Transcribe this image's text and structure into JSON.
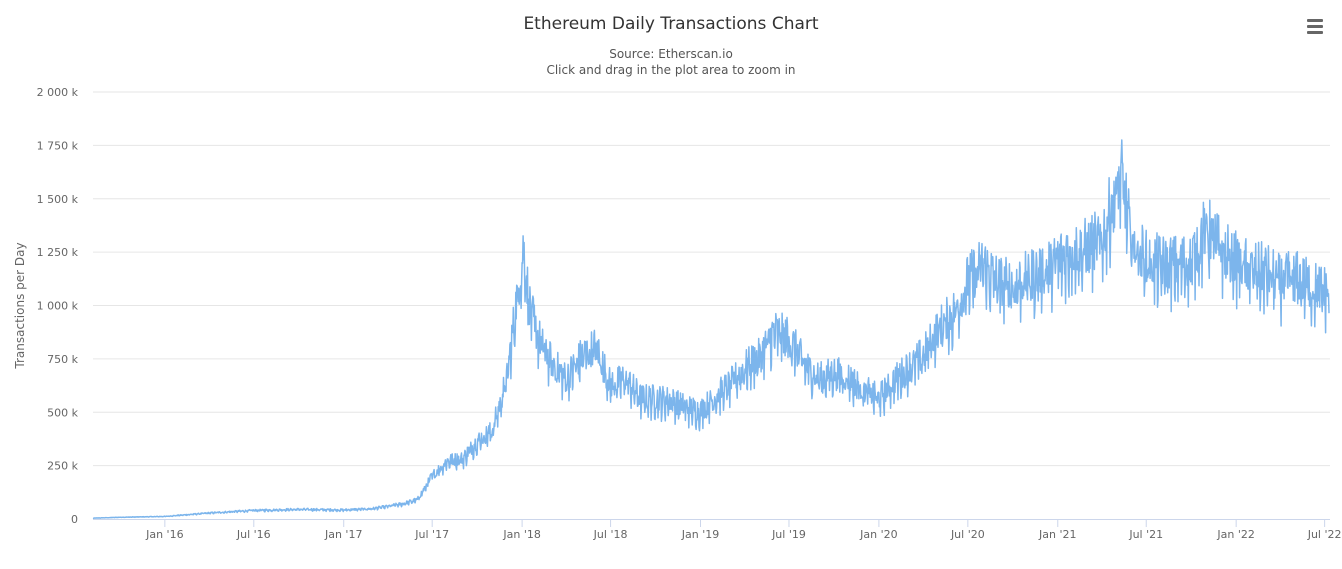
{
  "chart_data": {
    "type": "line",
    "title": "Ethereum Daily Transactions Chart",
    "subtitle": "Source: Etherscan.io",
    "instruction": "Click and drag in the plot area to zoom in",
    "ylabel": "Transactions per Day",
    "xlabel": "",
    "ylim": [
      0,
      2000000
    ],
    "yticks": [
      0,
      250000,
      500000,
      750000,
      1000000,
      1250000,
      1500000,
      1750000,
      2000000
    ],
    "ytick_labels": [
      "0",
      "250 k",
      "500 k",
      "750 k",
      "1 000 k",
      "1 250 k",
      "1 500 k",
      "1 750 k",
      "2 000 k"
    ],
    "xlim": [
      "2015-08-07",
      "2022-07-12"
    ],
    "xticks": [
      "2016-01-01",
      "2016-07-01",
      "2017-01-01",
      "2017-07-01",
      "2018-01-01",
      "2018-07-01",
      "2019-01-01",
      "2019-07-01",
      "2020-01-01",
      "2020-07-01",
      "2021-01-01",
      "2021-07-01",
      "2022-01-01",
      "2022-07-01"
    ],
    "xtick_labels": [
      "Jan '16",
      "Jul '16",
      "Jan '17",
      "Jul '17",
      "Jan '18",
      "Jul '18",
      "Jan '19",
      "Jul '19",
      "Jan '20",
      "Jul '20",
      "Jan '21",
      "Jul '21",
      "Jan '22",
      "Jul '22"
    ],
    "grid": true,
    "legend": "none",
    "series": [
      {
        "color": "#7cb5ec",
        "x": [
          "2015-08-07",
          "2015-10-01",
          "2016-01-01",
          "2016-04-01",
          "2016-07-01",
          "2016-10-01",
          "2017-01-01",
          "2017-03-01",
          "2017-05-01",
          "2017-06-01",
          "2017-07-01",
          "2017-08-01",
          "2017-09-01",
          "2017-10-01",
          "2017-11-01",
          "2017-12-01",
          "2017-12-20",
          "2018-01-04",
          "2018-01-15",
          "2018-02-01",
          "2018-03-01",
          "2018-04-01",
          "2018-05-01",
          "2018-06-01",
          "2018-07-01",
          "2018-08-01",
          "2018-09-01",
          "2018-10-01",
          "2018-11-01",
          "2018-12-01",
          "2019-01-01",
          "2019-02-01",
          "2019-03-01",
          "2019-04-01",
          "2019-05-01",
          "2019-06-01",
          "2019-07-01",
          "2019-08-01",
          "2019-09-01",
          "2019-10-01",
          "2019-11-01",
          "2019-12-01",
          "2020-01-01",
          "2020-02-01",
          "2020-03-01",
          "2020-04-01",
          "2020-05-01",
          "2020-06-01",
          "2020-07-01",
          "2020-08-01",
          "2020-09-01",
          "2020-10-01",
          "2020-11-01",
          "2020-12-01",
          "2021-01-01",
          "2021-02-01",
          "2021-03-01",
          "2021-04-01",
          "2021-05-10",
          "2021-06-01",
          "2021-07-01",
          "2021-08-01",
          "2021-09-01",
          "2021-10-01",
          "2021-11-01",
          "2021-12-01",
          "2022-01-01",
          "2022-02-01",
          "2022-03-01",
          "2022-04-01",
          "2022-05-01",
          "2022-06-01",
          "2022-07-10"
        ],
        "values": [
          4000,
          8000,
          12000,
          28000,
          40000,
          45000,
          42000,
          48000,
          70000,
          90000,
          200000,
          270000,
          280000,
          360000,
          410000,
          650000,
          1000000,
          1250000,
          1000000,
          850000,
          730000,
          650000,
          750000,
          800000,
          620000,
          650000,
          560000,
          560000,
          550000,
          520000,
          500000,
          570000,
          620000,
          700000,
          750000,
          870000,
          840000,
          720000,
          650000,
          680000,
          650000,
          600000,
          560000,
          640000,
          700000,
          760000,
          880000,
          950000,
          1100000,
          1180000,
          1100000,
          1080000,
          1120000,
          1150000,
          1200000,
          1250000,
          1250000,
          1300000,
          1600000,
          1300000,
          1200000,
          1180000,
          1180000,
          1200000,
          1350000,
          1250000,
          1200000,
          1150000,
          1150000,
          1100000,
          1120000,
          1080000,
          1050000
        ]
      }
    ]
  },
  "menu": {
    "icon": "hamburger-menu-icon"
  }
}
